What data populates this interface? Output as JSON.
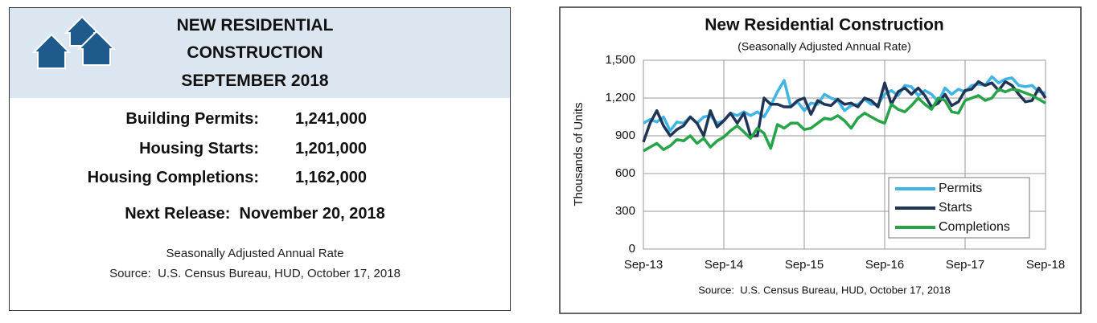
{
  "card": {
    "title_lines": [
      "NEW RESIDENTIAL",
      "CONSTRUCTION",
      "SEPTEMBER 2018"
    ],
    "rows": [
      [
        "Building Permits:",
        "1,241,000"
      ],
      [
        "Housing Starts:",
        "1,201,000"
      ],
      [
        "Housing Completions:",
        "1,162,000"
      ]
    ],
    "next_release": "Next Release:  November 20, 2018",
    "footnotes": [
      "Seasonally Adjusted Annual Rate",
      "Source:  U.S. Census Bureau, HUD, October 17, 2018"
    ]
  },
  "chart_data": {
    "type": "line",
    "title": "New Residential Construction",
    "subtitle": "(Seasonally Adjusted Annual Rate)",
    "y_label": "Thousands of Units",
    "source": "Source:  U.S. Census Bureau, HUD, October 17, 2018",
    "categories": [
      "Sep-13",
      null,
      null,
      null,
      null,
      null,
      null,
      null,
      null,
      null,
      null,
      null,
      "Sep-14",
      null,
      null,
      null,
      null,
      null,
      null,
      null,
      null,
      null,
      null,
      null,
      "Sep-15",
      null,
      null,
      null,
      null,
      null,
      null,
      null,
      null,
      null,
      null,
      null,
      "Sep-16",
      null,
      null,
      null,
      null,
      null,
      null,
      null,
      null,
      null,
      null,
      null,
      "Sep-17",
      null,
      null,
      null,
      null,
      null,
      null,
      null,
      null,
      null,
      null,
      null,
      "Sep-18"
    ],
    "ylim": [
      0,
      1500
    ],
    "yticks": [
      0,
      300,
      600,
      900,
      {
        "value": 1200,
        "label": "1,200"
      },
      {
        "value": 1500,
        "label": "1,500"
      }
    ],
    "grid": true,
    "legend": "lower right",
    "series": [
      {
        "name": "Permits",
        "color": "#41b4e6",
        "values": [
          1000,
          1030,
          1010,
          1050,
          940,
          1010,
          1000,
          1050,
          1000,
          1050,
          1060,
          1000,
          1020,
          1080,
          1060,
          1090,
          1060,
          1090,
          1050,
          1140,
          1250,
          1340,
          1130,
          1170,
          1100,
          1160,
          1150,
          1230,
          1200,
          1180,
          1100,
          1140,
          1150,
          1190,
          1150,
          1150,
          1230,
          1260,
          1220,
          1300,
          1290,
          1220,
          1260,
          1230,
          1170,
          1280,
          1230,
          1270,
          1250,
          1300,
          1310,
          1300,
          1370,
          1320,
          1350,
          1360,
          1300,
          1290,
          1300,
          1250,
          1240
        ]
      },
      {
        "name": "Starts",
        "color": "#1f3555",
        "values": [
          850,
          1000,
          1100,
          980,
          900,
          950,
          980,
          1050,
          1000,
          900,
          1100,
          970,
          1020,
          1080,
          1000,
          1080,
          900,
          900,
          1200,
          1150,
          1150,
          1130,
          1130,
          1180,
          1200,
          1070,
          1180,
          1150,
          1140,
          1190,
          1150,
          1160,
          1130,
          1200,
          1180,
          1130,
          1320,
          1150,
          1250,
          1280,
          1230,
          1280,
          1220,
          1130,
          1160,
          1230,
          1140,
          1170,
          1260,
          1270,
          1330,
          1300,
          1320,
          1260,
          1330,
          1300,
          1230,
          1170,
          1180,
          1280,
          1200
        ]
      },
      {
        "name": "Completions",
        "color": "#27a348",
        "values": [
          780,
          810,
          840,
          790,
          820,
          870,
          860,
          900,
          840,
          880,
          810,
          860,
          890,
          940,
          980,
          930,
          880,
          960,
          920,
          800,
          990,
          960,
          1000,
          1000,
          950,
          960,
          1000,
          1040,
          1030,
          1060,
          1020,
          960,
          1040,
          1080,
          1050,
          1020,
          1000,
          1150,
          1110,
          1090,
          1140,
          1200,
          1150,
          1110,
          1200,
          1180,
          1090,
          1080,
          1180,
          1200,
          1220,
          1180,
          1200,
          1270,
          1250,
          1270,
          1260,
          1240,
          1220,
          1190,
          1160
        ]
      }
    ]
  }
}
